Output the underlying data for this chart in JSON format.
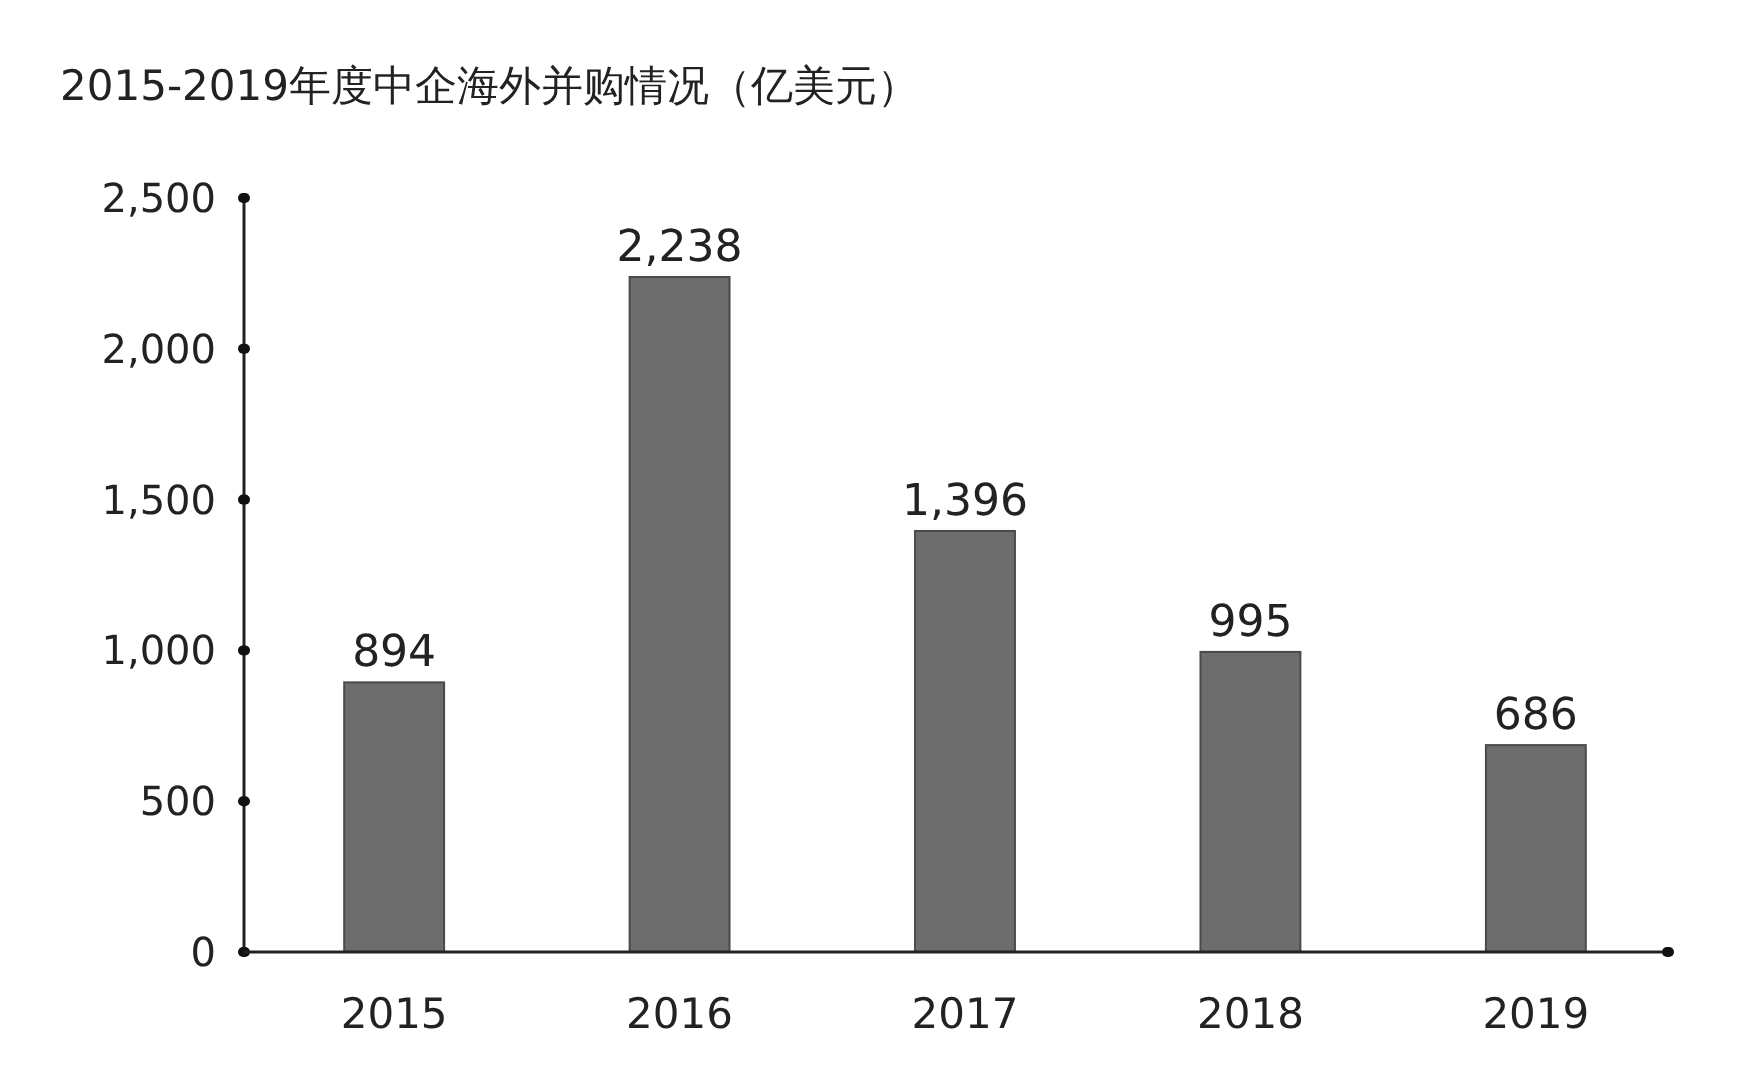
{
  "chart_data": {
    "type": "bar",
    "title": "2015-2019年度中企海外并购情况（亿美元）",
    "categories": [
      "2015",
      "2016",
      "2017",
      "2018",
      "2019"
    ],
    "values": [
      894,
      2238,
      1396,
      995,
      686
    ],
    "color": "#6d6d6d",
    "ylim": [
      0,
      2500
    ],
    "yticks": [
      {
        "value": 0,
        "label": "0"
      },
      {
        "value": 500,
        "label": "500"
      },
      {
        "value": 1000,
        "label": "1,000"
      },
      {
        "value": 1500,
        "label": "1,500"
      },
      {
        "value": 2000,
        "label": "2,000"
      },
      {
        "value": 2500,
        "label": "2,500"
      }
    ],
    "value_labels": [
      "894",
      "2,238",
      "1,396",
      "995",
      "686"
    ],
    "grid": false
  }
}
